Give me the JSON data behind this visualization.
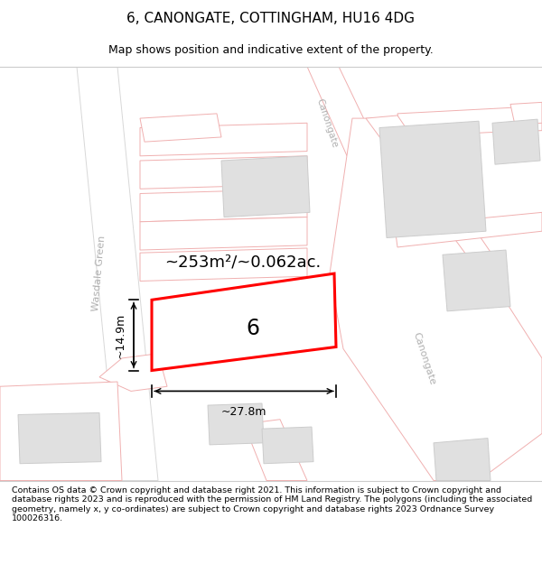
{
  "title": "6, CANONGATE, COTTINGHAM, HU16 4DG",
  "subtitle": "Map shows position and indicative extent of the property.",
  "footer": "Contains OS data © Crown copyright and database right 2021. This information is subject to Crown copyright and database rights 2023 and is reproduced with the permission of HM Land Registry. The polygons (including the associated geometry, namely x, y co-ordinates) are subject to Crown copyright and database rights 2023 Ordnance Survey 100026316.",
  "background_color": "#ffffff",
  "map_background": "#ffffff",
  "highlight_color": "#ff0000",
  "property_number": "6",
  "area_text": "~253m²/~0.062ac.",
  "width_text": "~27.8m",
  "height_text": "~14.9m",
  "road_line_color": "#f0b0b0",
  "road_fill_color": "#ffffff",
  "road_center_color": "#d8d8d8",
  "building_color": "#e0e0e0",
  "building_edge_color": "#cccccc",
  "wasdale_label_color": "#b0b0b0",
  "canongate_label_color": "#b0b0b0",
  "title_fontsize": 11,
  "subtitle_fontsize": 9,
  "footer_fontsize": 6.8,
  "area_fontsize": 13,
  "dim_fontsize": 9,
  "number_fontsize": 17
}
